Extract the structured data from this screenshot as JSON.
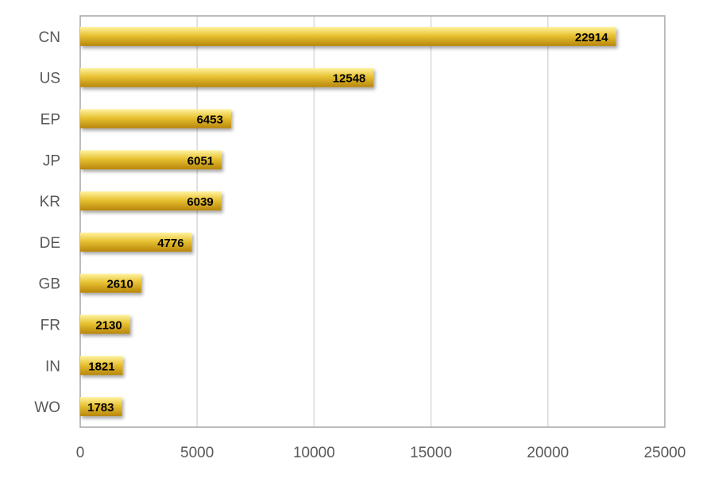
{
  "chart_data": {
    "type": "bar",
    "orientation": "horizontal",
    "title": "",
    "xlabel": "",
    "ylabel": "",
    "categories": [
      "CN",
      "US",
      "EP",
      "JP",
      "KR",
      "DE",
      "GB",
      "FR",
      "IN",
      "WO"
    ],
    "values": [
      22914,
      12548,
      6453,
      6051,
      6039,
      4776,
      2610,
      2130,
      1821,
      1783
    ],
    "data_labels": [
      "22914",
      "12548",
      "6453",
      "6051",
      "6039",
      "4776",
      "2610",
      "2130",
      "1821",
      "1783"
    ],
    "xlim": [
      0,
      25000
    ],
    "x_ticks": [
      0,
      5000,
      10000,
      15000,
      20000,
      25000
    ],
    "x_tick_labels": [
      "0",
      "5000",
      "10000",
      "15000",
      "20000",
      "25000"
    ],
    "grid": "vertical",
    "legend": "none",
    "colors": {
      "bar_top": "#fff3a0",
      "bar_mid": "#e8c232",
      "bar_bottom": "#b8860b",
      "grid": "#d9d9d9",
      "border": "#a6a6a6",
      "text": "#595959"
    }
  }
}
